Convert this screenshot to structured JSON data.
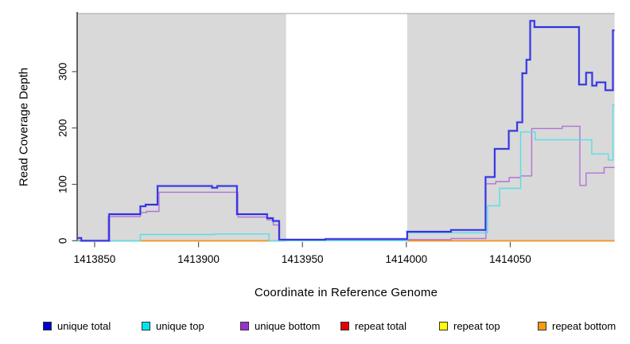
{
  "figure": {
    "xlabel": "Coordinate in Reference Genome",
    "ylabel": "Read Coverage Depth"
  },
  "chart_data": {
    "type": "line",
    "subtype": "step-after coverage profile",
    "title": "",
    "xlabel": "Coordinate in Reference Genome",
    "ylabel": "Read Coverage Depth",
    "xlim": [
      1413841.6,
      1414100.2
    ],
    "ylim": [
      0,
      403
    ],
    "grid": false,
    "legend_position": "bottom",
    "x_ticks": [
      {
        "value": 1413850,
        "label": "1413850"
      },
      {
        "value": 1413900,
        "label": "1413900"
      },
      {
        "value": 1413950,
        "label": "1413950"
      },
      {
        "value": 1414000,
        "label": "1414000"
      },
      {
        "value": 1414050,
        "label": "1414050"
      }
    ],
    "y_ticks": [
      {
        "value": 0,
        "label": "0"
      },
      {
        "value": 100,
        "label": "100"
      },
      {
        "value": 200,
        "label": "200"
      },
      {
        "value": 300,
        "label": "300"
      }
    ],
    "background_regions": [
      {
        "from": 1413841.6,
        "to": 1413942.2,
        "color": "#d9d9d9"
      },
      {
        "from": 1413942.2,
        "to": 1414000.4,
        "color": "#ffffff"
      },
      {
        "from": 1414000.4,
        "to": 1414100.2,
        "color": "#d9d9d9"
      }
    ],
    "series": [
      {
        "name": "unique total",
        "color": "#3232dd",
        "halo": "#9b9bf5",
        "width": 1.9,
        "draw": true,
        "points": [
          [
            1413841.6,
            5
          ],
          [
            1413843.6,
            0
          ],
          [
            1413857,
            47
          ],
          [
            1413872,
            61
          ],
          [
            1413874.5,
            64
          ],
          [
            1413880.3,
            97
          ],
          [
            1413906.5,
            94
          ],
          [
            1413909,
            97
          ],
          [
            1413918.5,
            47
          ],
          [
            1413933,
            40
          ],
          [
            1413935.8,
            35
          ],
          [
            1413938.8,
            2
          ],
          [
            1413961,
            3
          ],
          [
            1414000.4,
            16
          ],
          [
            1414021.5,
            19
          ],
          [
            1414038.1,
            113
          ],
          [
            1414042.5,
            163
          ],
          [
            1414049.3,
            195
          ],
          [
            1414053.3,
            210
          ],
          [
            1414055.8,
            297
          ],
          [
            1414057.8,
            321
          ],
          [
            1414059.6,
            390
          ],
          [
            1414061.6,
            379
          ],
          [
            1414083.1,
            277
          ],
          [
            1414086.5,
            298
          ],
          [
            1414089.4,
            275
          ],
          [
            1414091.5,
            281
          ],
          [
            1414095.8,
            267
          ],
          [
            1414099.4,
            373
          ]
        ]
      },
      {
        "name": "unique top",
        "color": "#55dfe8",
        "width": 1.4,
        "draw": true,
        "points": [
          [
            1413841.6,
            0
          ],
          [
            1413872,
            11
          ],
          [
            1413907.8,
            12
          ],
          [
            1413933.9,
            0
          ],
          [
            1414000.4,
            14
          ],
          [
            1414039.1,
            62
          ],
          [
            1414044.9,
            93
          ],
          [
            1414055,
            193
          ],
          [
            1414062,
            179
          ],
          [
            1414089.2,
            154
          ],
          [
            1414097.2,
            143
          ],
          [
            1414099.4,
            241
          ]
        ]
      },
      {
        "name": "unique bottom",
        "color": "#b272d8",
        "width": 1.4,
        "draw": true,
        "points": [
          [
            1413841.6,
            0
          ],
          [
            1413856.5,
            43
          ],
          [
            1413872,
            50
          ],
          [
            1413875,
            52
          ],
          [
            1413881,
            86
          ],
          [
            1413919,
            42
          ],
          [
            1413933,
            37
          ],
          [
            1413936,
            28
          ],
          [
            1413939,
            1
          ],
          [
            1414000.4,
            2
          ],
          [
            1414021.5,
            4
          ],
          [
            1414038.3,
            101
          ],
          [
            1414043,
            105
          ],
          [
            1414049.5,
            112
          ],
          [
            1414055,
            115
          ],
          [
            1414060.3,
            199
          ],
          [
            1414075,
            203
          ],
          [
            1414083.5,
            98
          ],
          [
            1414086.5,
            120
          ],
          [
            1414095.2,
            130
          ]
        ]
      },
      {
        "name": "repeat total",
        "color": "#e03030",
        "width": 1.3,
        "draw": false,
        "points": [
          [
            1413841.6,
            0
          ],
          [
            1413993,
            1
          ],
          [
            1414021.5,
            0
          ]
        ]
      },
      {
        "name": "repeat top",
        "color": "#ffff00",
        "width": 1.3,
        "draw": false,
        "points": [
          [
            1413841.6,
            0
          ]
        ]
      },
      {
        "name": "repeat bottom",
        "color": "#ff9412",
        "width": 1.6,
        "draw": false,
        "points": [
          [
            1413841.6,
            0
          ]
        ]
      }
    ],
    "baseline_segments": [
      {
        "from": 1413841.6,
        "to": 1413843.2,
        "value": 0.5,
        "color": "#e03030",
        "width": 1.6
      },
      {
        "from": 1413841.6,
        "to": 1413872,
        "value": 0,
        "color": "#8fcf8f",
        "width": 1.3
      },
      {
        "from": 1413872,
        "to": 1413933.9,
        "value": 0,
        "color": "#ff9412",
        "width": 1.6
      },
      {
        "from": 1413933.9,
        "to": 1413940.5,
        "value": 0,
        "color": "#8fcf8f",
        "width": 1.3
      },
      {
        "from": 1413993,
        "to": 1414021.5,
        "value": 1,
        "color": "#e86050",
        "width": 1.2
      },
      {
        "from": 1414000.4,
        "to": 1414100.2,
        "value": 0,
        "color": "#ff9412",
        "width": 1.6
      }
    ],
    "legend": [
      {
        "label": "unique total",
        "color": "#0000cc"
      },
      {
        "label": "unique top",
        "color": "#00e5ee"
      },
      {
        "label": "unique bottom",
        "color": "#9932cc"
      },
      {
        "label": "repeat total",
        "color": "#e60000"
      },
      {
        "label": "repeat top",
        "color": "#ffff00"
      },
      {
        "label": "repeat bottom",
        "color": "#ff9912"
      }
    ],
    "axis_colors": {
      "axis_line": "#1a1a1a",
      "tick": "#555555",
      "plot_top_border": "#a3a3a3"
    }
  }
}
